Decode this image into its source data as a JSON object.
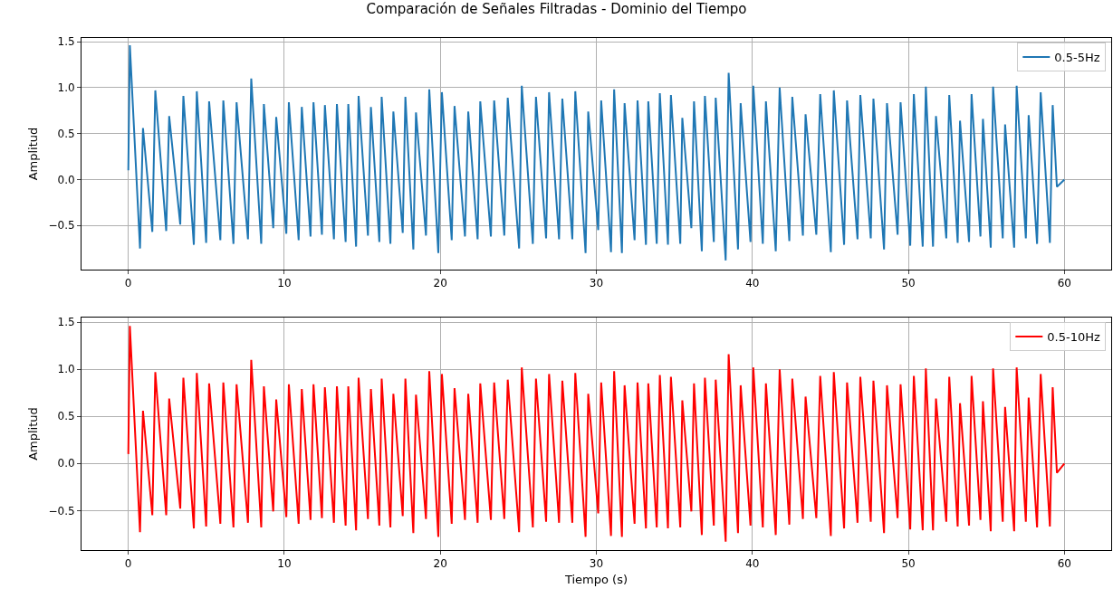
{
  "chart_data": [
    {
      "type": "line",
      "title": "Comparación de Señales Filtradas - Dominio del Tiempo",
      "ylabel": "Amplitud",
      "x": [
        0,
        0.1,
        0.75,
        0.94,
        1.54,
        1.73,
        2.43,
        2.62,
        3.33,
        3.53,
        4.2,
        4.39,
        4.99,
        5.18,
        5.9,
        6.09,
        6.74,
        6.94,
        7.67,
        7.88,
        8.52,
        8.69,
        9.29,
        9.48,
        10.13,
        10.29,
        10.92,
        11.12,
        11.68,
        11.87,
        12.41,
        12.6,
        13.18,
        13.37,
        13.93,
        14.1,
        14.6,
        14.76,
        15.36,
        15.55,
        16.09,
        16.24,
        16.8,
        16.99,
        17.59,
        17.76,
        18.27,
        18.44,
        19.08,
        19.29,
        19.87,
        20.1,
        20.73,
        20.91,
        21.58,
        21.79,
        22.39,
        22.56,
        23.24,
        23.45,
        24.1,
        24.32,
        25.05,
        25.22,
        25.93,
        26.13,
        26.78,
        26.97,
        27.61,
        27.82,
        28.46,
        28.65,
        29.31,
        29.48,
        30.12,
        30.31,
        30.94,
        31.14,
        31.64,
        31.81,
        32.45,
        32.64,
        33.18,
        33.33,
        33.87,
        34.07,
        34.59,
        34.78,
        35.38,
        35.51,
        36.09,
        36.26,
        36.76,
        36.96,
        37.53,
        37.65,
        38.29,
        38.48,
        39.08,
        39.25,
        39.88,
        40.06,
        40.67,
        40.87,
        41.5,
        41.75,
        42.37,
        42.56,
        43.24,
        43.41,
        44.1,
        44.35,
        45.03,
        45.22,
        45.88,
        46.07,
        46.74,
        46.92,
        47.59,
        47.76,
        48.44,
        48.63,
        49.31,
        49.5,
        50.12,
        50.35,
        50.92,
        51.12,
        51.58,
        51.77,
        52.43,
        52.62,
        53.16,
        53.31,
        53.89,
        54.05,
        54.62,
        54.78,
        55.28,
        55.43,
        56.05,
        56.2,
        56.78,
        56.94,
        57.53,
        57.71,
        58.25,
        58.48,
        59.07,
        59.25,
        59.52,
        60
      ],
      "series": [
        {
          "name": "0.5-5Hz",
          "color": "#1f77b4",
          "values": [
            0.1,
            1.46,
            -0.75,
            0.56,
            -0.57,
            0.97,
            -0.56,
            0.69,
            -0.49,
            0.91,
            -0.71,
            0.96,
            -0.69,
            0.85,
            -0.66,
            0.86,
            -0.7,
            0.84,
            -0.65,
            1.1,
            -0.7,
            0.82,
            -0.53,
            0.68,
            -0.59,
            0.84,
            -0.66,
            0.79,
            -0.62,
            0.84,
            -0.6,
            0.81,
            -0.65,
            0.82,
            -0.68,
            0.82,
            -0.73,
            0.91,
            -0.61,
            0.79,
            -0.68,
            0.9,
            -0.7,
            0.74,
            -0.58,
            0.9,
            -0.76,
            0.73,
            -0.61,
            0.98,
            -0.8,
            0.95,
            -0.66,
            0.8,
            -0.62,
            0.74,
            -0.65,
            0.85,
            -0.62,
            0.86,
            -0.61,
            0.89,
            -0.75,
            1.02,
            -0.7,
            0.9,
            -0.64,
            0.95,
            -0.65,
            0.88,
            -0.65,
            0.96,
            -0.8,
            0.74,
            -0.55,
            0.86,
            -0.79,
            0.98,
            -0.8,
            0.83,
            -0.66,
            0.86,
            -0.71,
            0.85,
            -0.7,
            0.94,
            -0.71,
            0.92,
            -0.7,
            0.67,
            -0.53,
            0.85,
            -0.78,
            0.91,
            -0.68,
            0.89,
            -0.88,
            1.16,
            -0.76,
            0.83,
            -0.68,
            1.02,
            -0.7,
            0.85,
            -0.78,
            1.0,
            -0.67,
            0.9,
            -0.61,
            0.71,
            -0.6,
            0.93,
            -0.79,
            0.97,
            -0.71,
            0.86,
            -0.65,
            0.92,
            -0.64,
            0.88,
            -0.76,
            0.83,
            -0.6,
            0.84,
            -0.72,
            0.93,
            -0.73,
            1.01,
            -0.73,
            0.69,
            -0.64,
            0.92,
            -0.69,
            0.64,
            -0.68,
            0.93,
            -0.62,
            0.66,
            -0.74,
            1.01,
            -0.64,
            0.6,
            -0.74,
            1.02,
            -0.64,
            0.7,
            -0.7,
            0.95,
            -0.69,
            0.81,
            -0.08,
            0
          ]
        }
      ],
      "xlim": [
        -3,
        63
      ],
      "ylim": [
        -0.98,
        1.54
      ],
      "xticks": [
        0,
        10,
        20,
        30,
        40,
        50,
        60
      ],
      "yticks": [
        {
          "value": -0.5,
          "label": "−0.5"
        },
        {
          "value": 0,
          "label": "0.0"
        },
        {
          "value": 0.5,
          "label": "0.5"
        },
        {
          "value": 1,
          "label": "1.0"
        },
        {
          "value": 1.5,
          "label": "1.5"
        }
      ],
      "grid": true,
      "legend": "top right"
    },
    {
      "type": "line",
      "xlabel": "Tiempo (s)",
      "ylabel": "Amplitud",
      "x": [
        0,
        0.1,
        0.75,
        0.94,
        1.54,
        1.73,
        2.43,
        2.62,
        3.33,
        3.53,
        4.2,
        4.39,
        4.99,
        5.18,
        5.9,
        6.09,
        6.74,
        6.94,
        7.67,
        7.88,
        8.52,
        8.69,
        9.29,
        9.48,
        10.13,
        10.29,
        10.92,
        11.12,
        11.68,
        11.87,
        12.41,
        12.6,
        13.18,
        13.37,
        13.93,
        14.1,
        14.6,
        14.76,
        15.36,
        15.55,
        16.09,
        16.24,
        16.8,
        16.99,
        17.59,
        17.76,
        18.27,
        18.44,
        19.08,
        19.29,
        19.87,
        20.1,
        20.73,
        20.91,
        21.58,
        21.79,
        22.39,
        22.56,
        23.24,
        23.45,
        24.1,
        24.32,
        25.05,
        25.22,
        25.93,
        26.13,
        26.78,
        26.97,
        27.61,
        27.82,
        28.46,
        28.65,
        29.31,
        29.48,
        30.12,
        30.31,
        30.94,
        31.14,
        31.64,
        31.81,
        32.45,
        32.64,
        33.18,
        33.33,
        33.87,
        34.07,
        34.59,
        34.78,
        35.38,
        35.51,
        36.09,
        36.26,
        36.76,
        36.96,
        37.53,
        37.65,
        38.29,
        38.48,
        39.08,
        39.25,
        39.88,
        40.06,
        40.67,
        40.87,
        41.5,
        41.75,
        42.37,
        42.56,
        43.24,
        43.41,
        44.1,
        44.35,
        45.03,
        45.22,
        45.88,
        46.07,
        46.74,
        46.92,
        47.59,
        47.76,
        48.44,
        48.63,
        49.31,
        49.5,
        50.12,
        50.35,
        50.92,
        51.12,
        51.58,
        51.77,
        52.43,
        52.62,
        53.16,
        53.31,
        53.89,
        54.05,
        54.62,
        54.78,
        55.28,
        55.43,
        56.05,
        56.2,
        56.78,
        56.94,
        57.53,
        57.71,
        58.25,
        58.48,
        59.07,
        59.25,
        59.52,
        60
      ],
      "series": [
        {
          "name": "0.5-10Hz",
          "color": "#ff0000",
          "values": [
            0.1,
            1.46,
            -0.73,
            0.56,
            -0.55,
            0.97,
            -0.55,
            0.69,
            -0.48,
            0.91,
            -0.69,
            0.96,
            -0.67,
            0.85,
            -0.64,
            0.86,
            -0.68,
            0.84,
            -0.63,
            1.1,
            -0.68,
            0.82,
            -0.51,
            0.68,
            -0.57,
            0.84,
            -0.64,
            0.79,
            -0.6,
            0.84,
            -0.58,
            0.81,
            -0.63,
            0.82,
            -0.66,
            0.82,
            -0.71,
            0.91,
            -0.59,
            0.79,
            -0.66,
            0.9,
            -0.68,
            0.74,
            -0.56,
            0.9,
            -0.74,
            0.73,
            -0.59,
            0.98,
            -0.78,
            0.95,
            -0.64,
            0.8,
            -0.6,
            0.74,
            -0.63,
            0.85,
            -0.6,
            0.86,
            -0.59,
            0.89,
            -0.73,
            1.02,
            -0.68,
            0.9,
            -0.62,
            0.95,
            -0.63,
            0.88,
            -0.63,
            0.96,
            -0.78,
            0.74,
            -0.53,
            0.86,
            -0.77,
            0.98,
            -0.78,
            0.83,
            -0.64,
            0.86,
            -0.69,
            0.85,
            -0.68,
            0.94,
            -0.69,
            0.92,
            -0.68,
            0.67,
            -0.51,
            0.85,
            -0.76,
            0.91,
            -0.66,
            0.89,
            -0.83,
            1.16,
            -0.74,
            0.83,
            -0.66,
            1.02,
            -0.68,
            0.85,
            -0.76,
            1.0,
            -0.65,
            0.9,
            -0.59,
            0.71,
            -0.58,
            0.93,
            -0.77,
            0.97,
            -0.69,
            0.86,
            -0.63,
            0.92,
            -0.62,
            0.88,
            -0.74,
            0.83,
            -0.58,
            0.84,
            -0.7,
            0.93,
            -0.71,
            1.01,
            -0.71,
            0.69,
            -0.62,
            0.92,
            -0.67,
            0.64,
            -0.66,
            0.93,
            -0.6,
            0.66,
            -0.72,
            1.01,
            -0.62,
            0.6,
            -0.72,
            1.02,
            -0.62,
            0.7,
            -0.68,
            0.95,
            -0.67,
            0.81,
            -0.1,
            0
          ]
        }
      ],
      "xlim": [
        -3,
        63
      ],
      "ylim": [
        -0.92,
        1.55
      ],
      "xticks": [
        0,
        10,
        20,
        30,
        40,
        50,
        60
      ],
      "yticks": [
        {
          "value": -0.5,
          "label": "−0.5"
        },
        {
          "value": 0,
          "label": "0.0"
        },
        {
          "value": 0.5,
          "label": "0.5"
        },
        {
          "value": 1,
          "label": "1.0"
        },
        {
          "value": 1.5,
          "label": "1.5"
        }
      ],
      "grid": true,
      "legend": "top right"
    }
  ]
}
